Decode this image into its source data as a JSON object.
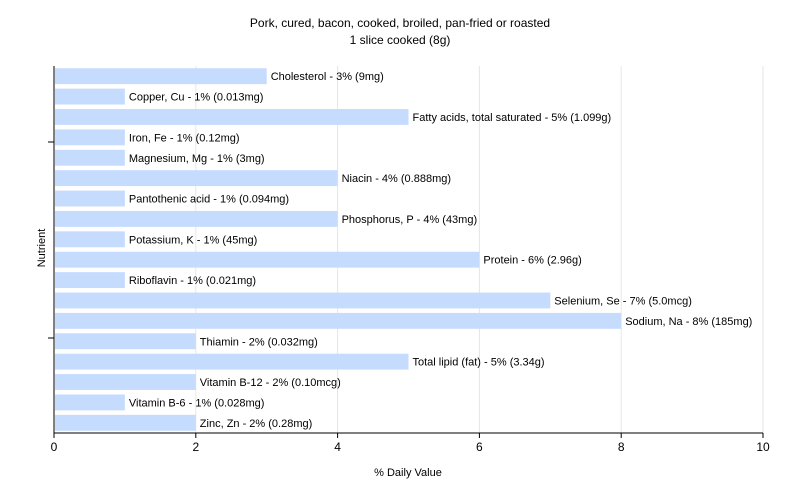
{
  "chart_data": {
    "type": "bar",
    "orientation": "horizontal",
    "title": "Pork, cured, bacon, cooked, broiled, pan-fried or roasted",
    "subtitle": "1 slice cooked (8g)",
    "xlabel": "% Daily Value",
    "ylabel": "Nutrient",
    "xlim": [
      0,
      10
    ],
    "xticks": [
      "0",
      "2",
      "4",
      "6",
      "8",
      "10"
    ],
    "grid": true,
    "bar_color": "#c6dcff",
    "categories": [
      "Cholesterol",
      "Copper, Cu",
      "Fatty acids, total saturated",
      "Iron, Fe",
      "Magnesium, Mg",
      "Niacin",
      "Pantothenic acid",
      "Phosphorus, P",
      "Potassium, K",
      "Protein",
      "Riboflavin",
      "Selenium, Se",
      "Sodium, Na",
      "Thiamin",
      "Total lipid (fat)",
      "Vitamin B-12",
      "Vitamin B-6",
      "Zinc, Zn"
    ],
    "values": [
      3,
      1,
      5,
      1,
      1,
      4,
      1,
      4,
      1,
      6,
      1,
      7,
      8,
      2,
      5,
      2,
      1,
      2
    ],
    "labels": [
      "Cholesterol - 3% (9mg)",
      "Copper, Cu - 1% (0.013mg)",
      "Fatty acids, total saturated - 5% (1.099g)",
      "Iron, Fe - 1% (0.12mg)",
      "Magnesium, Mg - 1% (3mg)",
      "Niacin - 4% (0.888mg)",
      "Pantothenic acid - 1% (0.094mg)",
      "Phosphorus, P - 4% (43mg)",
      "Potassium, K - 1% (45mg)",
      "Protein - 6% (2.96g)",
      "Riboflavin - 1% (0.021mg)",
      "Selenium, Se - 7% (5.0mcg)",
      "Sodium, Na - 8% (185mg)",
      "Thiamin - 2% (0.032mg)",
      "Total lipid (fat) - 5% (3.34g)",
      "Vitamin B-12 - 2% (0.10mcg)",
      "Vitamin B-6 - 1% (0.028mg)",
      "Zinc, Zn - 2% (0.28mg)"
    ]
  }
}
